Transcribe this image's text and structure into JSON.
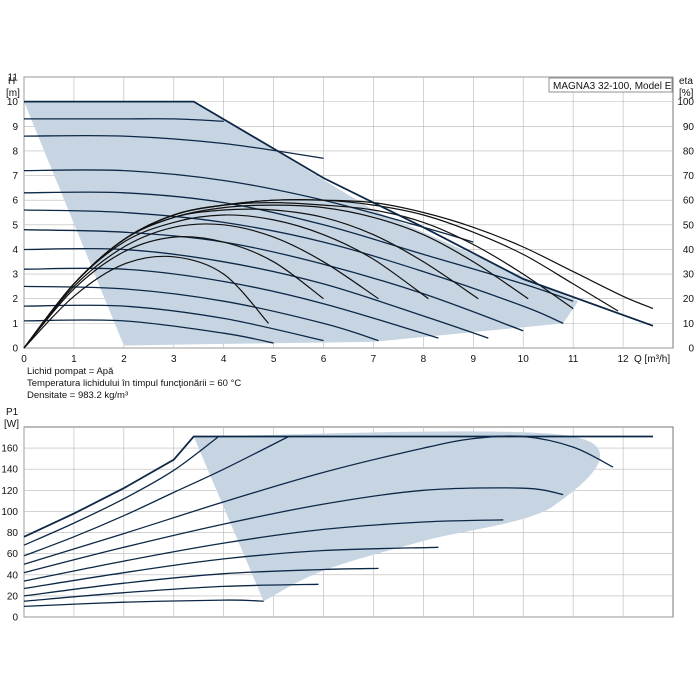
{
  "chart_data": [
    {
      "type": "line",
      "title": "MAGNA3 32-100, Model E",
      "xlabel": "Q [m³/h]",
      "ylabel_left_top": "H",
      "ylabel_left_unit": "[m]",
      "ylabel_right_top": "eta",
      "ylabel_right_unit": "[%]",
      "xlim": [
        0,
        13
      ],
      "ylim": [
        0,
        11
      ],
      "y2lim": [
        0,
        110
      ],
      "x_ticks": [
        0,
        1,
        2,
        3,
        4,
        5,
        6,
        7,
        8,
        9,
        10,
        11,
        12
      ],
      "y_ticks": [
        0,
        1,
        2,
        3,
        4,
        5,
        6,
        7,
        8,
        9,
        10,
        11
      ],
      "y2_ticks": [
        0,
        10,
        20,
        30,
        40,
        50,
        60,
        70,
        80,
        90,
        100
      ],
      "grid": true,
      "operating_area": {
        "x": [
          0,
          3.4,
          7,
          11.1,
          10.8,
          7,
          3.5,
          2
        ],
        "y": [
          10,
          10,
          5.6,
          1.9,
          1.0,
          0.25,
          0.15,
          0.1
        ]
      },
      "max_curve": {
        "x": [
          0,
          3.4,
          6,
          8,
          10,
          12.6
        ],
        "y": [
          10,
          10,
          6.9,
          4.9,
          2.8,
          0.9
        ]
      },
      "speed_curves": [
        {
          "x": [
            0,
            1,
            2,
            3,
            4
          ],
          "y": [
            9.3,
            9.3,
            9.3,
            9.3,
            9.2
          ]
        },
        {
          "x": [
            0,
            2,
            4,
            6
          ],
          "y": [
            8.6,
            8.6,
            8.3,
            7.7
          ]
        },
        {
          "x": [
            0,
            2,
            4,
            6,
            8,
            9
          ],
          "y": [
            7.2,
            7.2,
            6.8,
            6.0,
            4.9,
            4.3
          ]
        },
        {
          "x": [
            0,
            2,
            4,
            6,
            8,
            10,
            11
          ],
          "y": [
            6.3,
            6.3,
            5.9,
            5.0,
            3.8,
            2.6,
            1.9
          ]
        },
        {
          "x": [
            0,
            2,
            4,
            6,
            8,
            10,
            10.8
          ],
          "y": [
            5.6,
            5.5,
            5.1,
            4.3,
            3.1,
            1.7,
            1.0
          ]
        },
        {
          "x": [
            0,
            2,
            4,
            6,
            8,
            10
          ],
          "y": [
            4.8,
            4.7,
            4.3,
            3.4,
            2.2,
            0.7
          ]
        },
        {
          "x": [
            0,
            2,
            4,
            6,
            8,
            9.3
          ],
          "y": [
            4.0,
            4.0,
            3.5,
            2.6,
            1.3,
            0.4
          ]
        },
        {
          "x": [
            0,
            2,
            4,
            6,
            8.3
          ],
          "y": [
            3.2,
            3.2,
            2.7,
            1.8,
            0.4
          ]
        },
        {
          "x": [
            0,
            2,
            4,
            6,
            7.1
          ],
          "y": [
            2.5,
            2.4,
            1.9,
            1.0,
            0.3
          ]
        },
        {
          "x": [
            0,
            2,
            4,
            6
          ],
          "y": [
            1.7,
            1.7,
            1.2,
            0.3
          ]
        },
        {
          "x": [
            0,
            2,
            4,
            5
          ],
          "y": [
            1.1,
            1.1,
            0.6,
            0.2
          ]
        }
      ],
      "eta_curves": [
        {
          "x": [
            0,
            1,
            2,
            3,
            4,
            5,
            6,
            7,
            8,
            9,
            10,
            11,
            12,
            12.6
          ],
          "y": [
            0,
            26,
            44,
            54,
            58,
            60,
            60,
            59,
            55,
            49,
            41,
            31,
            21,
            16
          ]
        },
        {
          "x": [
            0,
            1,
            2,
            3,
            4,
            5,
            6,
            7,
            8,
            9,
            10,
            11,
            11.9
          ],
          "y": [
            0,
            26,
            44,
            54,
            58,
            60,
            60,
            58,
            54,
            47,
            38,
            26,
            15
          ]
        },
        {
          "x": [
            0,
            1,
            2,
            3,
            4,
            5,
            6,
            7,
            8,
            9,
            10,
            11
          ],
          "y": [
            0,
            26,
            44,
            54,
            58,
            59,
            58,
            56,
            51,
            42,
            30,
            16
          ]
        },
        {
          "x": [
            0,
            1,
            2,
            3,
            4,
            5,
            6,
            7,
            8,
            9,
            10.1
          ],
          "y": [
            0,
            26,
            44,
            53,
            57,
            58,
            57,
            53,
            46,
            35,
            20
          ]
        },
        {
          "x": [
            0,
            1,
            2,
            3,
            4,
            5,
            6,
            7,
            8,
            9.1
          ],
          "y": [
            0,
            26,
            44,
            53,
            56,
            56,
            53,
            46,
            35,
            20
          ]
        },
        {
          "x": [
            0,
            1,
            2,
            3,
            4,
            5,
            6,
            7,
            8.1
          ],
          "y": [
            0,
            26,
            43,
            51,
            54,
            52,
            46,
            36,
            20
          ]
        },
        {
          "x": [
            0,
            1,
            2,
            3,
            4,
            5,
            6,
            7.1
          ],
          "y": [
            0,
            25,
            41,
            49,
            50,
            45,
            35,
            20
          ]
        },
        {
          "x": [
            0,
            1,
            2,
            3,
            4,
            5,
            6
          ],
          "y": [
            0,
            24,
            39,
            45,
            43,
            35,
            20
          ]
        },
        {
          "x": [
            0,
            1,
            2,
            3,
            4,
            4.9
          ],
          "y": [
            0,
            21,
            34,
            37,
            30,
            10
          ]
        }
      ]
    },
    {
      "type": "line",
      "ylabel_left_top": "P1",
      "ylabel_left_unit": "[W]",
      "xlim": [
        0,
        13
      ],
      "ylim": [
        0,
        180
      ],
      "x_ticks": [
        0,
        1,
        2,
        3,
        4,
        5,
        6,
        7,
        8,
        9,
        10,
        11,
        12
      ],
      "y_ticks": [
        0,
        20,
        40,
        60,
        80,
        100,
        120,
        140,
        160
      ],
      "grid": true,
      "operating_area": {
        "x": [
          3.4,
          11.0,
          10.6,
          8,
          6,
          4.8
        ],
        "y": [
          171,
          171,
          105,
          72,
          44,
          15
        ]
      },
      "max_curve": {
        "x": [
          0,
          1,
          2,
          3,
          3.4,
          12.6
        ],
        "y": [
          76,
          98,
          122,
          149,
          171,
          171
        ]
      },
      "power_curves": [
        {
          "x": [
            0,
            1,
            2,
            3,
            3.9
          ],
          "y": [
            68,
            89,
            112,
            139,
            171
          ]
        },
        {
          "x": [
            0,
            1,
            2,
            3,
            4,
            5.3
          ],
          "y": [
            58,
            76,
            96,
            118,
            140,
            171
          ]
        },
        {
          "x": [
            0,
            2,
            4,
            6,
            8,
            9,
            10,
            11,
            11.8
          ],
          "y": [
            50,
            79,
            109,
            137,
            160,
            169,
            171,
            161,
            142
          ]
        },
        {
          "x": [
            0,
            2,
            4,
            6,
            8,
            10,
            10.8
          ],
          "y": [
            42,
            66,
            88,
            107,
            120,
            122,
            116
          ]
        },
        {
          "x": [
            0,
            2,
            4,
            6,
            8,
            9.6
          ],
          "y": [
            34,
            53,
            70,
            83,
            90,
            92
          ]
        },
        {
          "x": [
            0,
            2,
            4,
            6,
            8.3
          ],
          "y": [
            27,
            42,
            55,
            63,
            66
          ]
        },
        {
          "x": [
            0,
            2,
            4,
            6,
            7.1
          ],
          "y": [
            20,
            32,
            41,
            45,
            46
          ]
        },
        {
          "x": [
            0,
            2,
            4,
            5.9
          ],
          "y": [
            15,
            23,
            29,
            31
          ]
        },
        {
          "x": [
            0,
            2,
            4,
            4.8
          ],
          "y": [
            10,
            14,
            16,
            15
          ]
        }
      ]
    }
  ],
  "info": {
    "line1": "Lichid pompat = Apă",
    "line2": "Temperatura lichidului în timpul funcţionării = 60 °C",
    "line3": "Densitate = 983.2 kg/m³"
  },
  "colors": {
    "area_fill": "#c7d5e3",
    "curve_stroke": "#0d2846",
    "eta_stroke": "#111111",
    "grid": "#b8b8b8",
    "frame": "#777777"
  }
}
